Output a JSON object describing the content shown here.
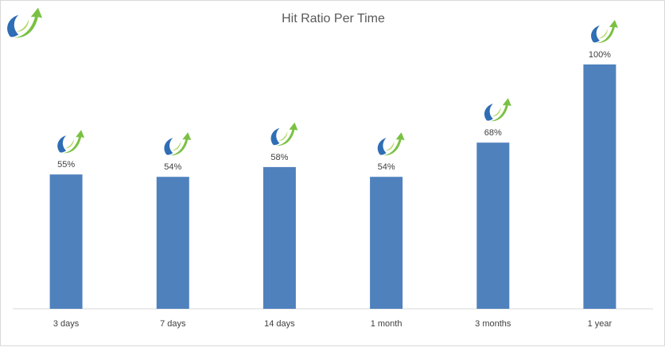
{
  "chart_data": {
    "type": "bar",
    "title": "Hit Ratio Per Time",
    "categories": [
      "3 days",
      "7 days",
      "14 days",
      "1 month",
      "3 months",
      "1 year"
    ],
    "values": [
      55,
      54,
      58,
      54,
      68,
      100
    ],
    "data_labels": [
      "55%",
      "54%",
      "58%",
      "54%",
      "68%",
      "100%"
    ],
    "ylim": [
      0,
      100
    ],
    "grid": false,
    "legend": "none",
    "bar_color": "#4f81bd",
    "axis_color": "#d9d9d9"
  },
  "logo": {
    "icon": "swoosh-arrow-logo-icon",
    "colors": {
      "blue": "#2f6db5",
      "green": "#7ac143",
      "light_green": "#b5d96a"
    }
  }
}
